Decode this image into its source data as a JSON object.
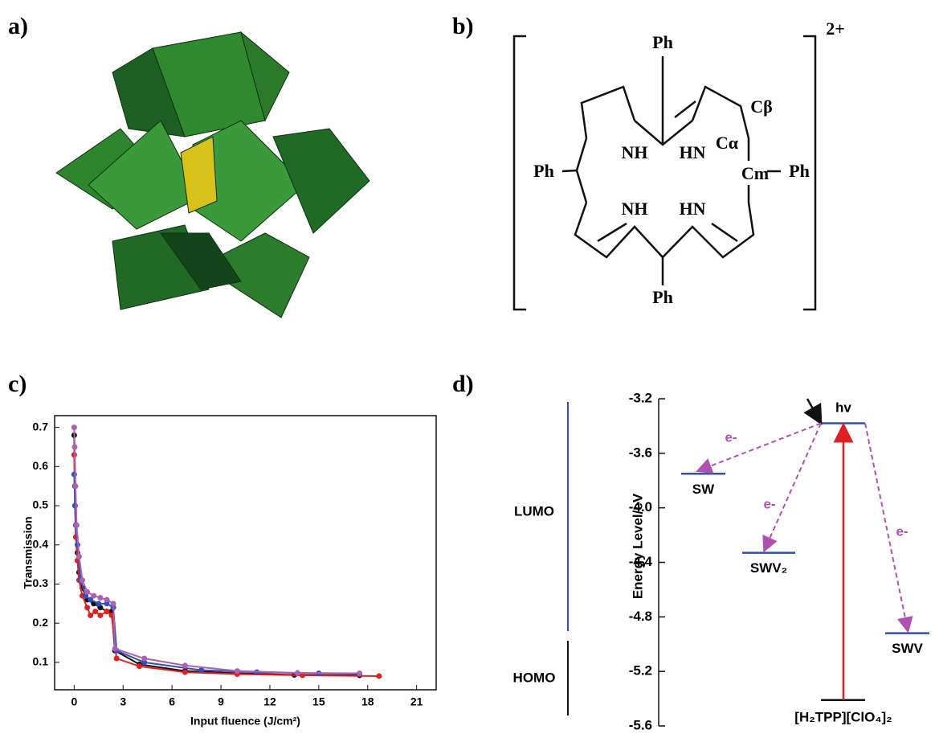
{
  "panel_labels": [
    "a)",
    "b)",
    "c)",
    "d)"
  ],
  "structure": {
    "charge": "2+",
    "labels": [
      "Ph",
      "Ph",
      "Ph",
      "Ph",
      "NH",
      "HN",
      "NH",
      "HN",
      "Cβ",
      "Cα",
      "Cm"
    ]
  },
  "chart_data": [
    {
      "type": "line",
      "xlabel": "Input fluence (J/cm²)",
      "ylabel": "Transmission",
      "xlim": [
        -1.2,
        22.2
      ],
      "ylim": [
        0.03,
        0.73
      ],
      "xticks": [
        0,
        3,
        6,
        9,
        12,
        15,
        18,
        21
      ],
      "yticks": [
        0.1,
        0.2,
        0.3,
        0.4,
        0.5,
        0.6,
        0.7
      ],
      "series": [
        {
          "color": "#111111",
          "x": [
            0,
            0.05,
            0.1,
            0.2,
            0.3,
            0.5,
            0.8,
            1.2,
            1.6,
            2.0,
            2.3,
            2.5,
            4,
            6.8,
            10,
            13.5,
            17.5
          ],
          "values": [
            0.68,
            0.55,
            0.45,
            0.38,
            0.33,
            0.29,
            0.26,
            0.25,
            0.24,
            0.23,
            0.23,
            0.13,
            0.095,
            0.078,
            0.072,
            0.068,
            0.067
          ]
        },
        {
          "color": "#e02020",
          "x": [
            0,
            0.05,
            0.1,
            0.2,
            0.3,
            0.5,
            0.8,
            1.0,
            1.3,
            1.6,
            2.0,
            2.3,
            2.6,
            4,
            6.8,
            10,
            14,
            18.7
          ],
          "values": [
            0.63,
            0.5,
            0.42,
            0.36,
            0.31,
            0.27,
            0.24,
            0.22,
            0.23,
            0.22,
            0.23,
            0.22,
            0.11,
            0.09,
            0.075,
            0.07,
            0.067,
            0.065
          ]
        },
        {
          "color": "#3050c0",
          "x": [
            0,
            0.05,
            0.1,
            0.2,
            0.4,
            0.7,
            1.0,
            1.5,
            2.0,
            2.4,
            2.6,
            4.3,
            7.8,
            11.2,
            15,
            17.5
          ],
          "values": [
            0.58,
            0.5,
            0.45,
            0.4,
            0.31,
            0.27,
            0.26,
            0.25,
            0.25,
            0.24,
            0.13,
            0.1,
            0.08,
            0.075,
            0.072,
            0.071
          ]
        },
        {
          "color": "#b060b0",
          "x": [
            0,
            0.03,
            0.08,
            0.15,
            0.3,
            0.5,
            0.8,
            1.2,
            1.6,
            2.0,
            2.4,
            2.5,
            4.3,
            6.8,
            10,
            13.7,
            17.5
          ],
          "values": [
            0.7,
            0.65,
            0.55,
            0.45,
            0.37,
            0.31,
            0.28,
            0.27,
            0.265,
            0.26,
            0.25,
            0.135,
            0.11,
            0.092,
            0.078,
            0.073,
            0.072
          ]
        }
      ]
    },
    {
      "type": "energy-levels",
      "ylabel": "Energy Level/eV",
      "ylim": [
        -5.6,
        -3.2
      ],
      "yticks": [
        -3.2,
        -3.6,
        {
          "value": -4,
          "label": "-4.0"
        },
        -4.4,
        -4.8,
        -5.2,
        -5.6
      ],
      "bands": [
        "LUMO",
        "HOMO"
      ],
      "levels": [
        {
          "label": "SW",
          "value": -3.75
        },
        {
          "label": "SWV₂",
          "value": -4.33
        },
        {
          "label": "SWV",
          "value": -4.92
        }
      ],
      "donor": {
        "label": "[H₂TPP][ClO₄]₂",
        "lumo": -3.38,
        "homo": -5.41
      },
      "excitation": "hv",
      "transfer_label": "e-",
      "level_color": "#3050b0",
      "excitation_color": "#e02020",
      "transfer_color": "#b050b0"
    }
  ]
}
